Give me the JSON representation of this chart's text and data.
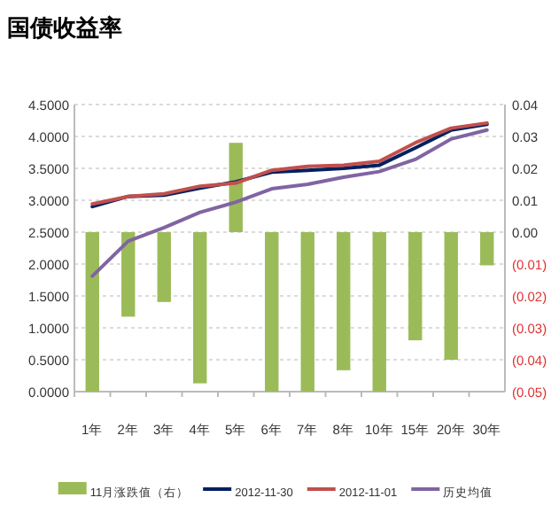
{
  "chart_data": {
    "type": "bar",
    "title": "国债收益率",
    "categories": [
      "1年",
      "2年",
      "3年",
      "4年",
      "5年",
      "6年",
      "7年",
      "8年",
      "10年",
      "15年",
      "20年",
      "30年"
    ],
    "series": [
      {
        "name": "11月涨跌值（右）",
        "axis": "y2",
        "color": "#9bbb59",
        "values": [
          -0.05,
          -0.0265,
          -0.0219,
          -0.0474,
          0.028,
          -0.05,
          -0.05,
          -0.0433,
          -0.05,
          -0.0339,
          -0.04,
          -0.0104
        ]
      },
      {
        "name": "2012-11-30",
        "type": "line",
        "color": "#002060",
        "values": [
          2.9,
          3.06,
          3.08,
          3.19,
          3.29,
          3.44,
          3.47,
          3.5,
          3.55,
          3.82,
          4.1,
          4.19
        ]
      },
      {
        "name": "2012-11-01",
        "type": "line",
        "color": "#c0504d",
        "values": [
          2.94,
          3.06,
          3.1,
          3.22,
          3.27,
          3.47,
          3.53,
          3.55,
          3.61,
          3.9,
          4.13,
          4.21
        ]
      },
      {
        "name": "历史均值",
        "type": "line",
        "color": "#8064a2",
        "values": [
          1.81,
          2.36,
          2.57,
          2.81,
          2.97,
          3.18,
          3.25,
          3.36,
          3.45,
          3.64,
          3.96,
          4.1
        ]
      }
    ],
    "ylim": [
      0,
      4.5
    ],
    "yticks": [
      {
        "value": 0,
        "label": "0.0000"
      },
      {
        "value": 0.5,
        "label": "0.5000"
      },
      {
        "value": 1,
        "label": "1.0000"
      },
      {
        "value": 1.5,
        "label": "1.5000"
      },
      {
        "value": 2,
        "label": "2.0000"
      },
      {
        "value": 2.5,
        "label": "2.5000"
      },
      {
        "value": 3,
        "label": "3.0000"
      },
      {
        "value": 3.5,
        "label": "3.5000"
      },
      {
        "value": 4,
        "label": "4.0000"
      },
      {
        "value": 4.5,
        "label": "4.5000"
      }
    ],
    "y2lim": [
      -0.05,
      0.04
    ],
    "y2ticks": [
      {
        "value": 0.04,
        "label": "0.04"
      },
      {
        "value": 0.03,
        "label": "0.03"
      },
      {
        "value": 0.02,
        "label": "0.02"
      },
      {
        "value": 0.01,
        "label": "0.01"
      },
      {
        "value": 0,
        "label": "0.00"
      },
      {
        "value": -0.01,
        "label": "(0.01)"
      },
      {
        "value": -0.02,
        "label": "(0.02)"
      },
      {
        "value": -0.03,
        "label": "(0.03)"
      },
      {
        "value": -0.04,
        "label": "(0.04)"
      },
      {
        "value": -0.05,
        "label": "(0.05)"
      }
    ],
    "grid": "y",
    "legend": "bottom",
    "marker": "none",
    "line_style": "solid"
  }
}
